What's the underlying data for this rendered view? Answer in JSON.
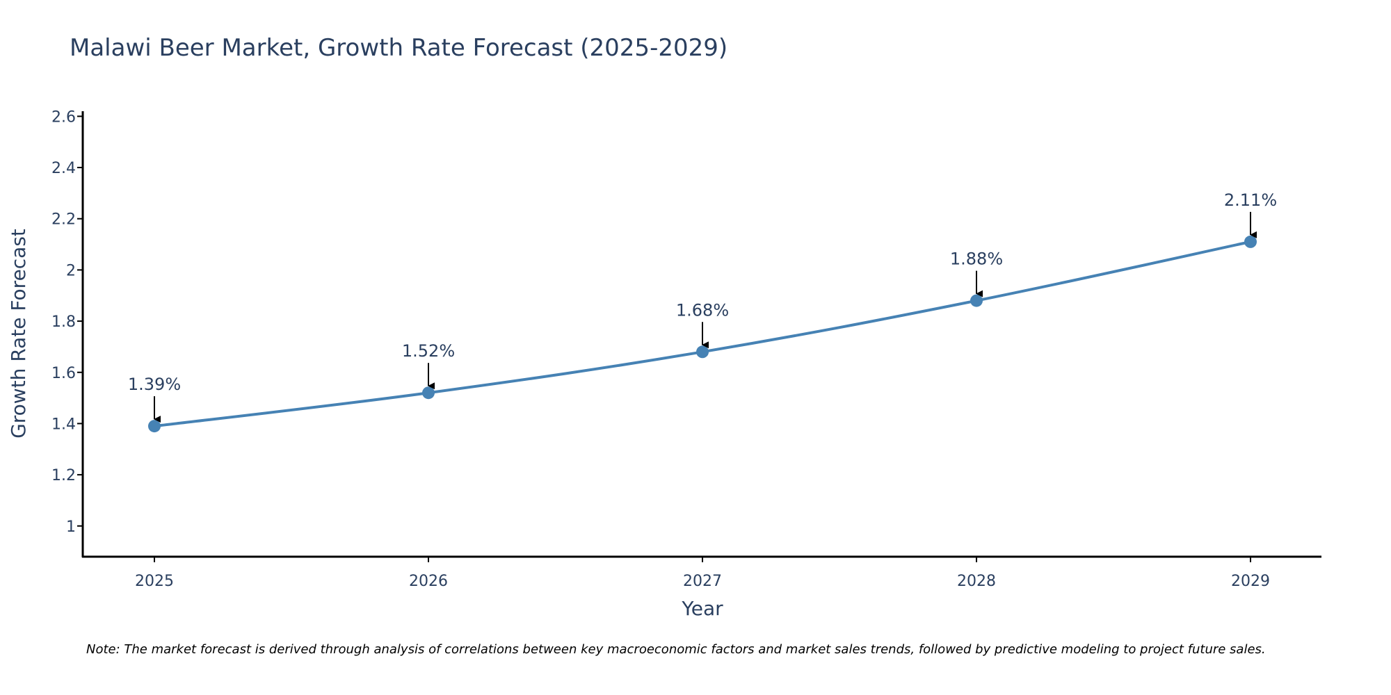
{
  "chart_data": {
    "type": "line",
    "title": "Malawi Beer Market, Growth Rate Forecast (2025-2029)",
    "xlabel": "Year",
    "ylabel": "Growth Rate Forecast",
    "categories": [
      "2025",
      "2026",
      "2027",
      "2028",
      "2029"
    ],
    "values": [
      1.39,
      1.52,
      1.68,
      1.88,
      2.11
    ],
    "data_labels": [
      "1.39%",
      "1.52%",
      "1.68%",
      "1.88%",
      "2.11%"
    ],
    "ylim": [
      0.88,
      2.62
    ],
    "yticks": [
      1,
      1.2,
      1.4,
      1.6,
      1.8,
      2,
      2.2,
      2.4,
      2.6
    ],
    "ytick_labels": [
      "1",
      "1.2",
      "1.4",
      "1.6",
      "1.8",
      "2",
      "2.2",
      "2.4",
      "2.6"
    ],
    "grid": false,
    "line_color": "#4682b4",
    "axis_color": "#000000",
    "annotation_arrow_color": "#000000",
    "note": "Note: The market forecast is derived through analysis of correlations between key macroeconomic factors and market sales trends, followed by predictive modeling to project future sales."
  }
}
